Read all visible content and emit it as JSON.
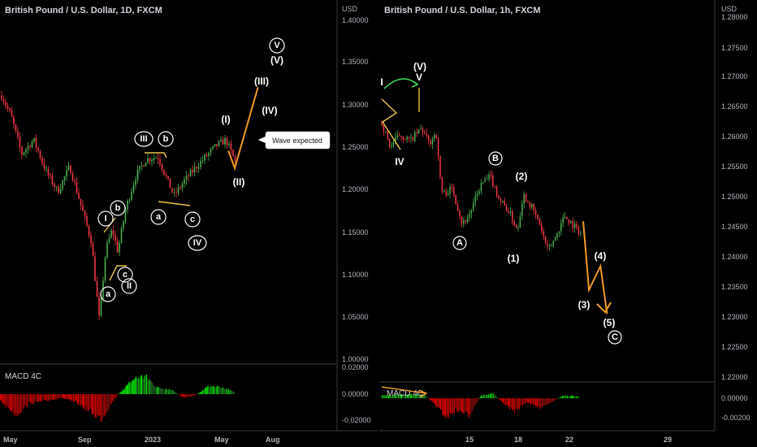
{
  "chart_data": [
    {
      "type": "candlestick",
      "title": "British Pound / U.S. Dollar, 1D, FXCM",
      "currency": "USD",
      "y_ticks": [
        "1.40000",
        "1.35000",
        "1.30000",
        "1.25000",
        "1.20000",
        "1.15000",
        "1.10000",
        "1.05000",
        "1.00000"
      ],
      "ylim": [
        0.995,
        1.415
      ],
      "x_ticks": [
        "May",
        "Sep",
        "2023",
        "May",
        "Aug"
      ],
      "price_path": [
        {
          "t": 0,
          "v": 1.315
        },
        {
          "t": 12,
          "v": 1.29
        },
        {
          "t": 25,
          "v": 1.245
        },
        {
          "t": 40,
          "v": 1.262
        },
        {
          "t": 55,
          "v": 1.225
        },
        {
          "t": 70,
          "v": 1.2
        },
        {
          "t": 85,
          "v": 1.23
        },
        {
          "t": 100,
          "v": 1.18
        },
        {
          "t": 112,
          "v": 1.14
        },
        {
          "t": 122,
          "v": 1.045
        },
        {
          "t": 130,
          "v": 1.13
        },
        {
          "t": 138,
          "v": 1.155
        },
        {
          "t": 145,
          "v": 1.128
        },
        {
          "t": 155,
          "v": 1.18
        },
        {
          "t": 168,
          "v": 1.22
        },
        {
          "t": 180,
          "v": 1.238
        },
        {
          "t": 195,
          "v": 1.242
        },
        {
          "t": 205,
          "v": 1.218
        },
        {
          "t": 215,
          "v": 1.195
        },
        {
          "t": 230,
          "v": 1.215
        },
        {
          "t": 245,
          "v": 1.232
        },
        {
          "t": 255,
          "v": 1.242
        },
        {
          "t": 268,
          "v": 1.255
        },
        {
          "t": 280,
          "v": 1.262
        },
        {
          "t": 292,
          "v": 1.235
        }
      ],
      "waves": [
        {
          "label": "I",
          "circled": true
        },
        {
          "label": "II",
          "circled": true
        },
        {
          "label": "a",
          "circled": true
        },
        {
          "label": "b",
          "circled": true
        },
        {
          "label": "c",
          "circled": true
        },
        {
          "label": "III",
          "circled": true
        },
        {
          "label": "b",
          "circled": true
        },
        {
          "label": "a",
          "circled": true
        },
        {
          "label": "c",
          "circled": true
        },
        {
          "label": "IV",
          "circled": true
        },
        {
          "label": "V",
          "circled": true
        },
        {
          "label": "(I)"
        },
        {
          "label": "(II)"
        },
        {
          "label": "(III)"
        },
        {
          "label": "(IV)"
        },
        {
          "label": "(V)"
        }
      ],
      "projection": [
        {
          "t": 283,
          "v": 1.249
        },
        {
          "t": 291,
          "v": 1.228
        },
        {
          "t": 320,
          "v": 1.325
        }
      ],
      "callout": "Wave expected",
      "macd": {
        "label": "MACD 4C",
        "y_ticks": [
          "0.02000",
          "0.00000",
          "-0.02000"
        ],
        "profile": [
          {
            "t": 0,
            "v": -0.006
          },
          {
            "t": 20,
            "v": -0.018
          },
          {
            "t": 35,
            "v": -0.008
          },
          {
            "t": 55,
            "v": -0.006
          },
          {
            "t": 75,
            "v": -0.003
          },
          {
            "t": 95,
            "v": -0.008
          },
          {
            "t": 112,
            "v": -0.016
          },
          {
            "t": 124,
            "v": -0.022
          },
          {
            "t": 138,
            "v": -0.006
          },
          {
            "t": 150,
            "v": 0.004
          },
          {
            "t": 165,
            "v": 0.014
          },
          {
            "t": 178,
            "v": 0.016
          },
          {
            "t": 192,
            "v": 0.006
          },
          {
            "t": 210,
            "v": 0.004
          },
          {
            "t": 225,
            "v": -0.003
          },
          {
            "t": 240,
            "v": -0.001
          },
          {
            "t": 255,
            "v": 0.007
          },
          {
            "t": 272,
            "v": 0.006
          },
          {
            "t": 287,
            "v": 0.002
          }
        ]
      }
    },
    {
      "type": "candlestick",
      "title": "British Pound / U.S. Dollar, 1h, FXCM",
      "currency": "USD",
      "y_ticks": [
        "1.28000",
        "1.27500",
        "1.27000",
        "1.26500",
        "1.26000",
        "1.25500",
        "1.25000",
        "1.24500",
        "1.24000",
        "1.23500",
        "1.23000",
        "1.22500",
        "1.22000"
      ],
      "ylim": [
        1.2195,
        1.281
      ],
      "x_ticks": [
        "15",
        "18",
        "22",
        "29"
      ],
      "price_path": [
        {
          "t": 0,
          "v": 1.2625
        },
        {
          "t": 10,
          "v": 1.2585
        },
        {
          "t": 22,
          "v": 1.2605
        },
        {
          "t": 35,
          "v": 1.2595
        },
        {
          "t": 48,
          "v": 1.2615
        },
        {
          "t": 58,
          "v": 1.259
        },
        {
          "t": 66,
          "v": 1.261
        },
        {
          "t": 70,
          "v": 1.2545
        },
        {
          "t": 74,
          "v": 1.2505
        },
        {
          "t": 86,
          "v": 1.2515
        },
        {
          "t": 98,
          "v": 1.2455
        },
        {
          "t": 108,
          "v": 1.2475
        },
        {
          "t": 120,
          "v": 1.252
        },
        {
          "t": 132,
          "v": 1.2535
        },
        {
          "t": 142,
          "v": 1.25
        },
        {
          "t": 155,
          "v": 1.2475
        },
        {
          "t": 165,
          "v": 1.2445
        },
        {
          "t": 172,
          "v": 1.2505
        },
        {
          "t": 182,
          "v": 1.2485
        },
        {
          "t": 192,
          "v": 1.2455
        },
        {
          "t": 202,
          "v": 1.241
        },
        {
          "t": 212,
          "v": 1.2435
        },
        {
          "t": 222,
          "v": 1.247
        },
        {
          "t": 232,
          "v": 1.2455
        },
        {
          "t": 242,
          "v": 1.244
        }
      ],
      "waves": [
        {
          "label": "I"
        },
        {
          "label": "IV"
        },
        {
          "label": "V"
        },
        {
          "label": "(V)"
        },
        {
          "label": "A",
          "circled": true
        },
        {
          "label": "B",
          "circled": true
        },
        {
          "label": "C",
          "circled": true
        },
        {
          "label": "(1)"
        },
        {
          "label": "(2)"
        },
        {
          "label": "(3)"
        },
        {
          "label": "(4)"
        },
        {
          "label": "(5)"
        }
      ],
      "projection": [
        {
          "t": 245,
          "v": 1.246
        },
        {
          "t": 252,
          "v": 1.2345
        },
        {
          "t": 266,
          "v": 1.2385
        },
        {
          "t": 274,
          "v": 1.2305
        }
      ],
      "macd": {
        "label": "MACD 4C",
        "y_ticks": [
          "0.00000",
          "-0.00200"
        ],
        "profile": [
          {
            "t": 0,
            "v": 0.0003
          },
          {
            "t": 30,
            "v": 0.0004
          },
          {
            "t": 50,
            "v": 0.0004
          },
          {
            "t": 60,
            "v": -0.0003
          },
          {
            "t": 78,
            "v": -0.002
          },
          {
            "t": 90,
            "v": -0.0012
          },
          {
            "t": 105,
            "v": -0.0018
          },
          {
            "t": 120,
            "v": 0.0003
          },
          {
            "t": 135,
            "v": 0.0005
          },
          {
            "t": 145,
            "v": -0.0004
          },
          {
            "t": 160,
            "v": -0.0014
          },
          {
            "t": 175,
            "v": -0.0004
          },
          {
            "t": 190,
            "v": -0.001
          },
          {
            "t": 205,
            "v": -0.0004
          },
          {
            "t": 220,
            "v": 0.0003
          },
          {
            "t": 238,
            "v": 0.0002
          }
        ]
      }
    }
  ]
}
